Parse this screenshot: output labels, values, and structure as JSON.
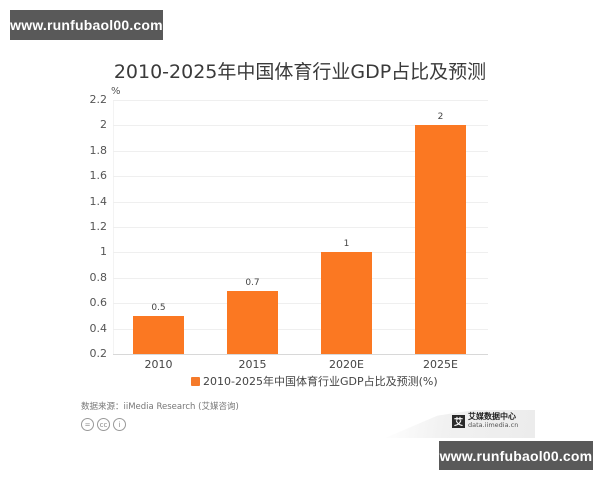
{
  "watermarks": {
    "top": "www.runfubaol00.com",
    "bottom": "www.runfubaol00.com"
  },
  "title": "2010-2025年中国体育行业GDP占比及预测",
  "y_unit": "%",
  "y_ticks": [
    "2.2",
    "2",
    "1.8",
    "1.6",
    "1.4",
    "1.2",
    "1",
    "0.8",
    "0.6",
    "0.4",
    "0.2"
  ],
  "bars": [
    {
      "category": "2010",
      "value_label": "0.5"
    },
    {
      "category": "2015",
      "value_label": "0.7"
    },
    {
      "category": "2020E",
      "value_label": "1"
    },
    {
      "category": "2025E",
      "value_label": "2"
    }
  ],
  "legend": {
    "label": "2010-2025年中国体育行业GDP占比及预测(%)",
    "color": "#f57a2a"
  },
  "source": "数据来源：iiMedia Research (艾媒咨询)",
  "license_icons": [
    "=",
    "cc",
    "i"
  ],
  "logo": {
    "mark": "艾",
    "name": "艾媒数据中心",
    "url": "data.iimedia.cn"
  },
  "colors": {
    "bar": "#fb7822",
    "title": "#3a3a3a",
    "watermark_bg": "#595959"
  },
  "chart_data": {
    "type": "bar",
    "title": "2010-2025年中国体育行业GDP占比及预测",
    "categories": [
      "2010",
      "2015",
      "2020E",
      "2025E"
    ],
    "values": [
      0.5,
      0.7,
      1,
      2
    ],
    "series": [
      {
        "name": "2010-2025年中国体育行业GDP占比及预测(%)",
        "values": [
          0.5,
          0.7,
          1,
          2
        ]
      }
    ],
    "xlabel": "",
    "ylabel": "%",
    "ylim": [
      0.2,
      2.2
    ],
    "y_ticks": [
      0.2,
      0.4,
      0.6,
      0.8,
      1,
      1.2,
      1.4,
      1.6,
      1.8,
      2,
      2.2
    ],
    "grid": true,
    "legend_position": "bottom",
    "data_labels": true
  }
}
